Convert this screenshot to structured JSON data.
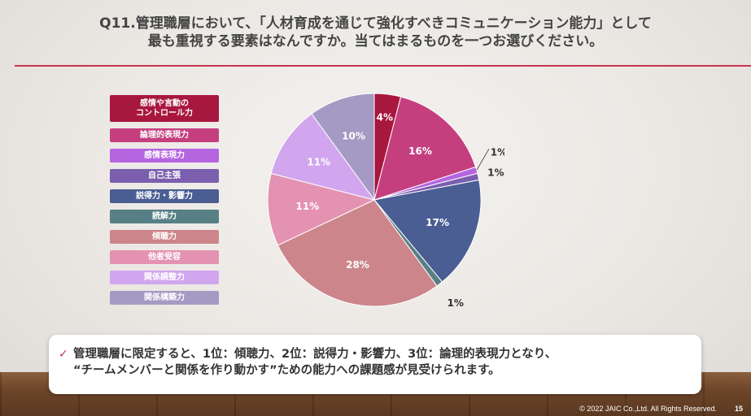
{
  "slide": {
    "title_line1": "Q11.管理職層において、「人材育成を通じて強化すべきコミュニケーション能力」として",
    "title_line2": "最も重視する要素はなんですか。当てはまるものを一つお選びください。",
    "callout_line1": "管理職層に限定すると、1位：傾聴力、2位：説得力・影響力、3位：論理的表現力となり、",
    "callout_line2": "“チームメンバーと関係を作り動かす”ための能力への課題感が見受けられます。",
    "footer": "© 2022 JAIC Co.,Ltd.  All Rights Reserved.",
    "page_number": "15",
    "check_icon": "✓"
  },
  "chart_data": {
    "type": "pie",
    "series": [
      {
        "name": "感情や言動の\nコントロール力",
        "value": 4,
        "label": "4%",
        "color": "#a8173d"
      },
      {
        "name": "論理的表現力",
        "value": 16,
        "label": "16%",
        "color": "#c53f7f"
      },
      {
        "name": "感情表現力",
        "value": 1,
        "label": "1%",
        "color": "#b565e0"
      },
      {
        "name": "自己主張",
        "value": 1,
        "label": "1%",
        "color": "#7b5fae"
      },
      {
        "name": "説得力・影響力",
        "value": 17,
        "label": "17%",
        "color": "#4b5e93"
      },
      {
        "name": "読解力",
        "value": 1,
        "label": "1%",
        "color": "#577f86"
      },
      {
        "name": "傾聴力",
        "value": 28,
        "label": "28%",
        "color": "#cc868b"
      },
      {
        "name": "他者受容",
        "value": 11,
        "label": "11%",
        "color": "#e492b2"
      },
      {
        "name": "関係調整力",
        "value": 11,
        "label": "11%",
        "color": "#d1a6ee"
      },
      {
        "name": "関係構築力",
        "value": 10,
        "label": "10%",
        "color": "#a59ac4"
      }
    ],
    "legend_placement": "left"
  }
}
